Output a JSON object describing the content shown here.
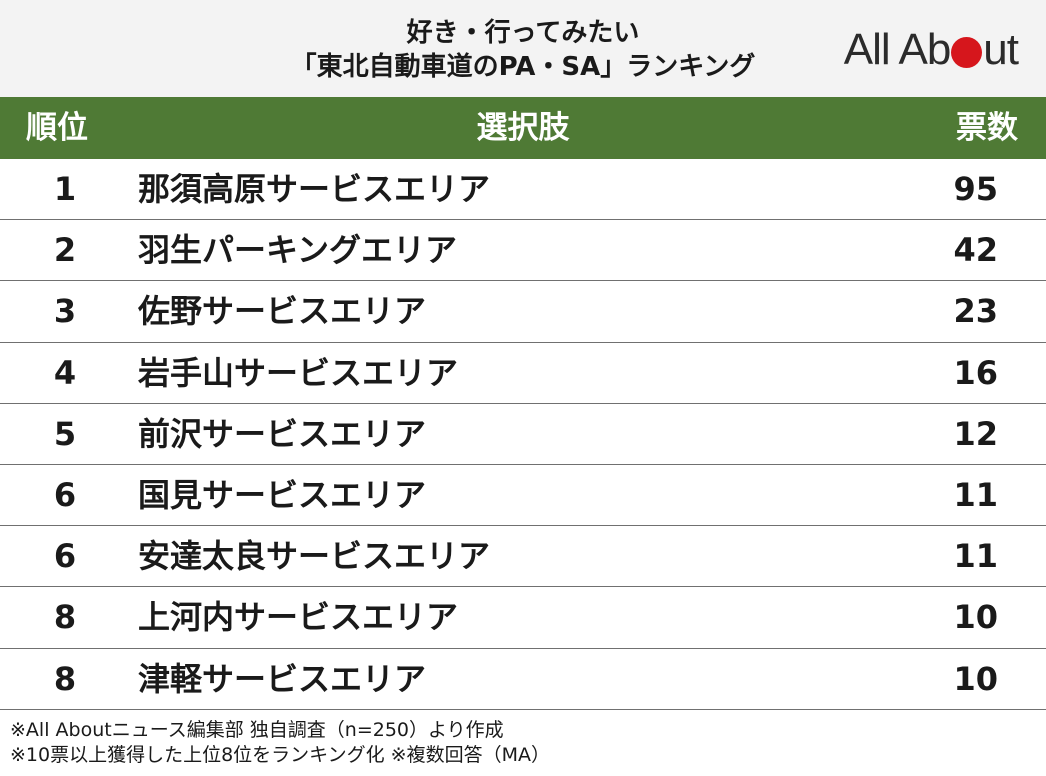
{
  "header": {
    "title_line1": "好き・行ってみたい",
    "title_line2": "「東北自動車道のPA・SA」ランキング",
    "logo_left": "All Ab",
    "logo_right": "ut"
  },
  "colors": {
    "header_bg": "#4f7a35",
    "logo_dot": "#d6161c"
  },
  "table": {
    "columns": {
      "rank": "順位",
      "choice": "選択肢",
      "votes": "票数"
    },
    "rows": [
      {
        "rank": "1",
        "name": "那須高原サービスエリア",
        "votes": "95"
      },
      {
        "rank": "2",
        "name": "羽生パーキングエリア",
        "votes": "42"
      },
      {
        "rank": "3",
        "name": "佐野サービスエリア",
        "votes": "23"
      },
      {
        "rank": "4",
        "name": "岩手山サービスエリア",
        "votes": "16"
      },
      {
        "rank": "5",
        "name": "前沢サービスエリア",
        "votes": "12"
      },
      {
        "rank": "6",
        "name": "国見サービスエリア",
        "votes": "11"
      },
      {
        "rank": "6",
        "name": "安達太良サービスエリア",
        "votes": "11"
      },
      {
        "rank": "8",
        "name": "上河内サービスエリア",
        "votes": "10"
      },
      {
        "rank": "8",
        "name": "津軽サービスエリア",
        "votes": "10"
      }
    ]
  },
  "notes": {
    "line1": "※All Aboutニュース編集部 独自調査（n=250）より作成",
    "line2": "※10票以上獲得した上位8位をランキング化 ※複数回答（MA）"
  }
}
